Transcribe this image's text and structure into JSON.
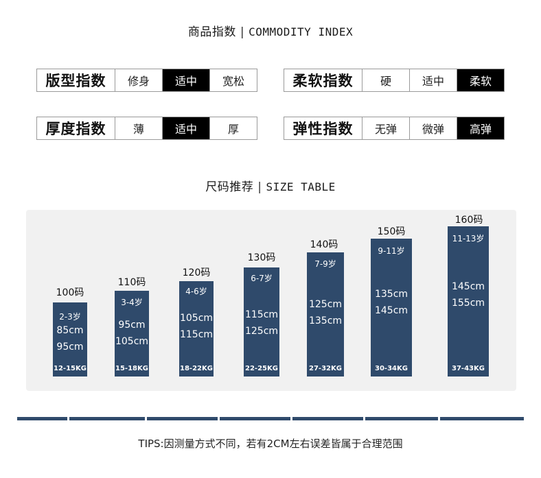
{
  "commodity_title": {
    "cn": "商品指数",
    "sep": "|",
    "en": "COMMODITY INDEX"
  },
  "indices": [
    {
      "label": "版型指数",
      "options": [
        "修身",
        "适中",
        "宽松"
      ],
      "active": 1
    },
    {
      "label": "柔软指数",
      "options": [
        "硬",
        "适中",
        "柔软"
      ],
      "active": 2
    },
    {
      "label": "厚度指数",
      "options": [
        "薄",
        "适中",
        "厚"
      ],
      "active": 1
    },
    {
      "label": "弹性指数",
      "options": [
        "无弹",
        "微弹",
        "高弹"
      ],
      "active": 2
    }
  ],
  "size_title": {
    "cn": "尺码推荐",
    "sep": "|",
    "en": "SIZE TABLE"
  },
  "sizes": [
    {
      "code": "100码",
      "age": "2-3岁",
      "h1": "85cm",
      "h2": "95cm",
      "kg": "12-15KG"
    },
    {
      "code": "110码",
      "age": "3-4岁",
      "h1": "95cm",
      "h2": "105cm",
      "kg": "15-18KG"
    },
    {
      "code": "120码",
      "age": "4-6岁",
      "h1": "105cm",
      "h2": "115cm",
      "kg": "18-22KG"
    },
    {
      "code": "130码",
      "age": "6-7岁",
      "h1": "115cm",
      "h2": "125cm",
      "kg": "22-25KG"
    },
    {
      "code": "140码",
      "age": "7-9岁",
      "h1": "125cm",
      "h2": "135cm",
      "kg": "27-32KG"
    },
    {
      "code": "150码",
      "age": "9-11岁",
      "h1": "135cm",
      "h2": "145cm",
      "kg": "30-34KG"
    },
    {
      "code": "160码",
      "age": "11-13岁",
      "h1": "145cm",
      "h2": "155cm",
      "kg": "37-43KG"
    }
  ],
  "tips": "TIPS:因测量方式不同，若有2CM左右误差皆属于合理范围",
  "colors": {
    "bar": "#2f4a6b",
    "active": "#000000",
    "panel": "#f1f1f1"
  }
}
